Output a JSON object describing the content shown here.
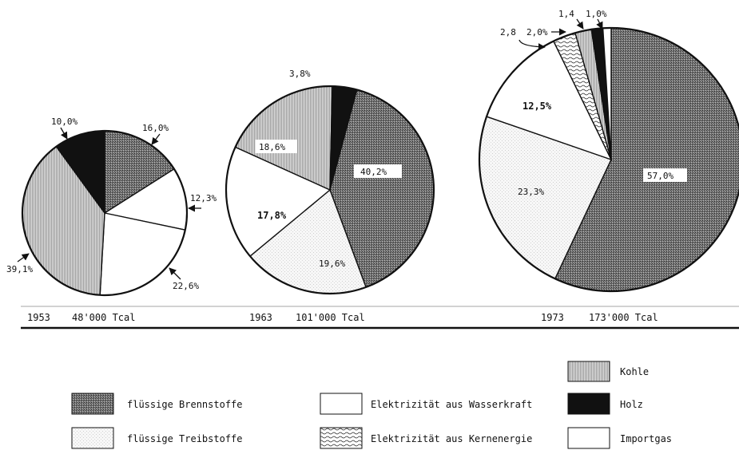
{
  "colors": {
    "ink": "#111111",
    "paper": "#ffffff"
  },
  "legend": [
    {
      "key": "kohle",
      "label": "Kohle",
      "pattern": "pat-kohle"
    },
    {
      "key": "fluessig_brenn",
      "label": "flüssige Brennstoffe",
      "pattern": "pat-brenn"
    },
    {
      "key": "wasserkraft",
      "label": "Elektrizität  aus Wasserkraft",
      "pattern": "white"
    },
    {
      "key": "holz",
      "label": "Holz",
      "pattern": "black"
    },
    {
      "key": "fluessig_treib",
      "label": "flüssige Treibstoffe",
      "pattern": "pat-treib"
    },
    {
      "key": "kern",
      "label": "Elektrizität aus Kernenergie",
      "pattern": "pat-kern"
    },
    {
      "key": "importgas",
      "label": "Importgas",
      "pattern": "white"
    }
  ],
  "chart_data": [
    {
      "type": "pie",
      "caption_year": "1953",
      "caption_total": "48'000 Tcal",
      "slices": [
        {
          "category": "flüssige Brennstoffe",
          "value": 16.0,
          "label": "16,0%",
          "pattern": "pat-brenn"
        },
        {
          "category": "Elektrizität aus Wasserkraft",
          "value": 12.3,
          "label": "12,3%",
          "pattern": "white"
        },
        {
          "category": "flüssige Treibstoffe",
          "value": 22.6,
          "label": "22,6%",
          "pattern": "white"
        },
        {
          "category": "Kohle",
          "value": 39.1,
          "label": "39,1%",
          "pattern": "pat-kohle"
        },
        {
          "category": "Holz",
          "value": 10.0,
          "label": "10,0%",
          "pattern": "black"
        }
      ]
    },
    {
      "type": "pie",
      "caption_year": "1963",
      "caption_total": "101'000 Tcal",
      "slices": [
        {
          "category": "flüssige Brennstoffe",
          "value": 40.2,
          "label": "40,2%",
          "pattern": "pat-brenn"
        },
        {
          "category": "flüssige Treibstoffe",
          "value": 19.6,
          "label": "19,6%",
          "pattern": "pat-treib"
        },
        {
          "category": "Elektrizität aus Wasserkraft",
          "value": 17.8,
          "label": "17,8%",
          "pattern": "white"
        },
        {
          "category": "Kohle",
          "value": 18.6,
          "label": "18,6%",
          "pattern": "pat-kohle"
        },
        {
          "category": "Holz",
          "value": 3.8,
          "label": "3,8%",
          "pattern": "black"
        }
      ]
    },
    {
      "type": "pie",
      "caption_year": "1973",
      "caption_total": "173'000 Tcal",
      "slices": [
        {
          "category": "flüssige Brennstoffe",
          "value": 57.0,
          "label": "57,0%",
          "pattern": "pat-brenn"
        },
        {
          "category": "flüssige Treibstoffe",
          "value": 23.3,
          "label": "23,3%",
          "pattern": "pat-treib"
        },
        {
          "category": "Elektrizität aus Wasserkraft",
          "value": 12.5,
          "label": "12,5%",
          "pattern": "white"
        },
        {
          "category": "Elektrizität aus Kernenergie",
          "value": 2.8,
          "label": "2,8",
          "pattern": "pat-kern"
        },
        {
          "category": "Kohle",
          "value": 2.0,
          "label": "2,0%",
          "pattern": "pat-kohle"
        },
        {
          "category": "Holz",
          "value": 1.4,
          "label": "1,4",
          "pattern": "black"
        },
        {
          "category": "Importgas",
          "value": 1.0,
          "label": "1,0%",
          "pattern": "white"
        }
      ]
    }
  ]
}
